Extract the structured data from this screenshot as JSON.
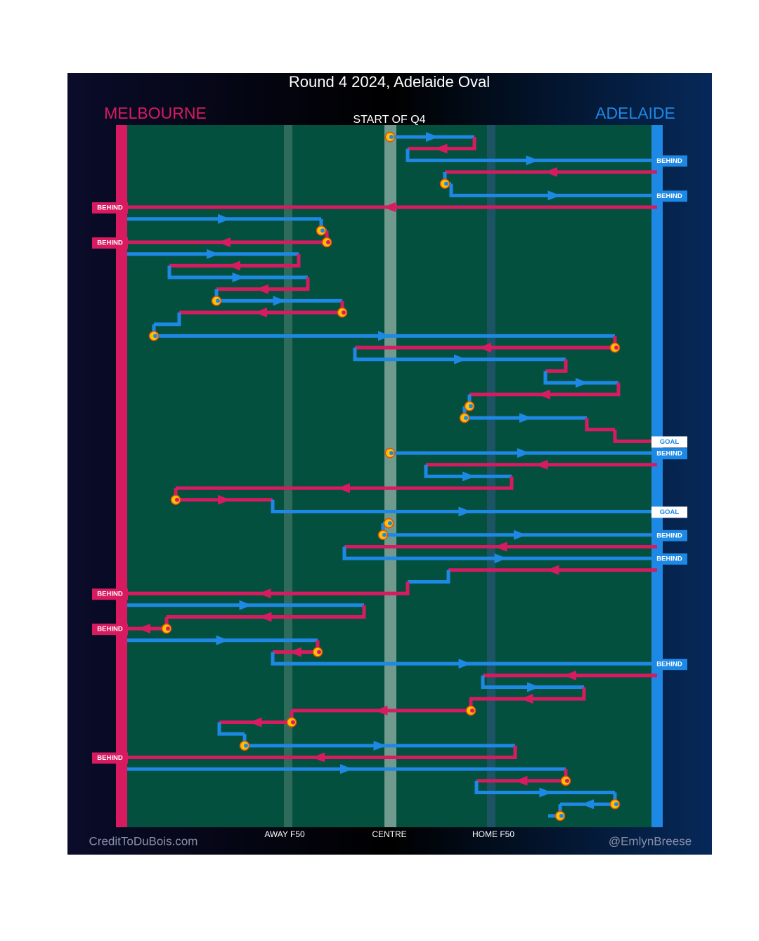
{
  "header": {
    "title": "Round 4 2024, Adelaide Oval",
    "home_team": "MELBOURNE",
    "away_team": "ADELAIDE",
    "period": "START OF Q4"
  },
  "field_markers": [
    "AWAY F50",
    "CENTRE",
    "HOME F50"
  ],
  "results": [
    "BEHIND",
    "BEHIND",
    "BEHIND",
    "BEHIND",
    "GOAL",
    "BEHIND",
    "GOAL",
    "BEHIND",
    "BEHIND",
    "BEHIND",
    "BEHIND",
    "BEHIND",
    "BEHIND"
  ],
  "footer": {
    "left": "CreditToDuBois.com",
    "right": "@EmlynBreese"
  }
}
